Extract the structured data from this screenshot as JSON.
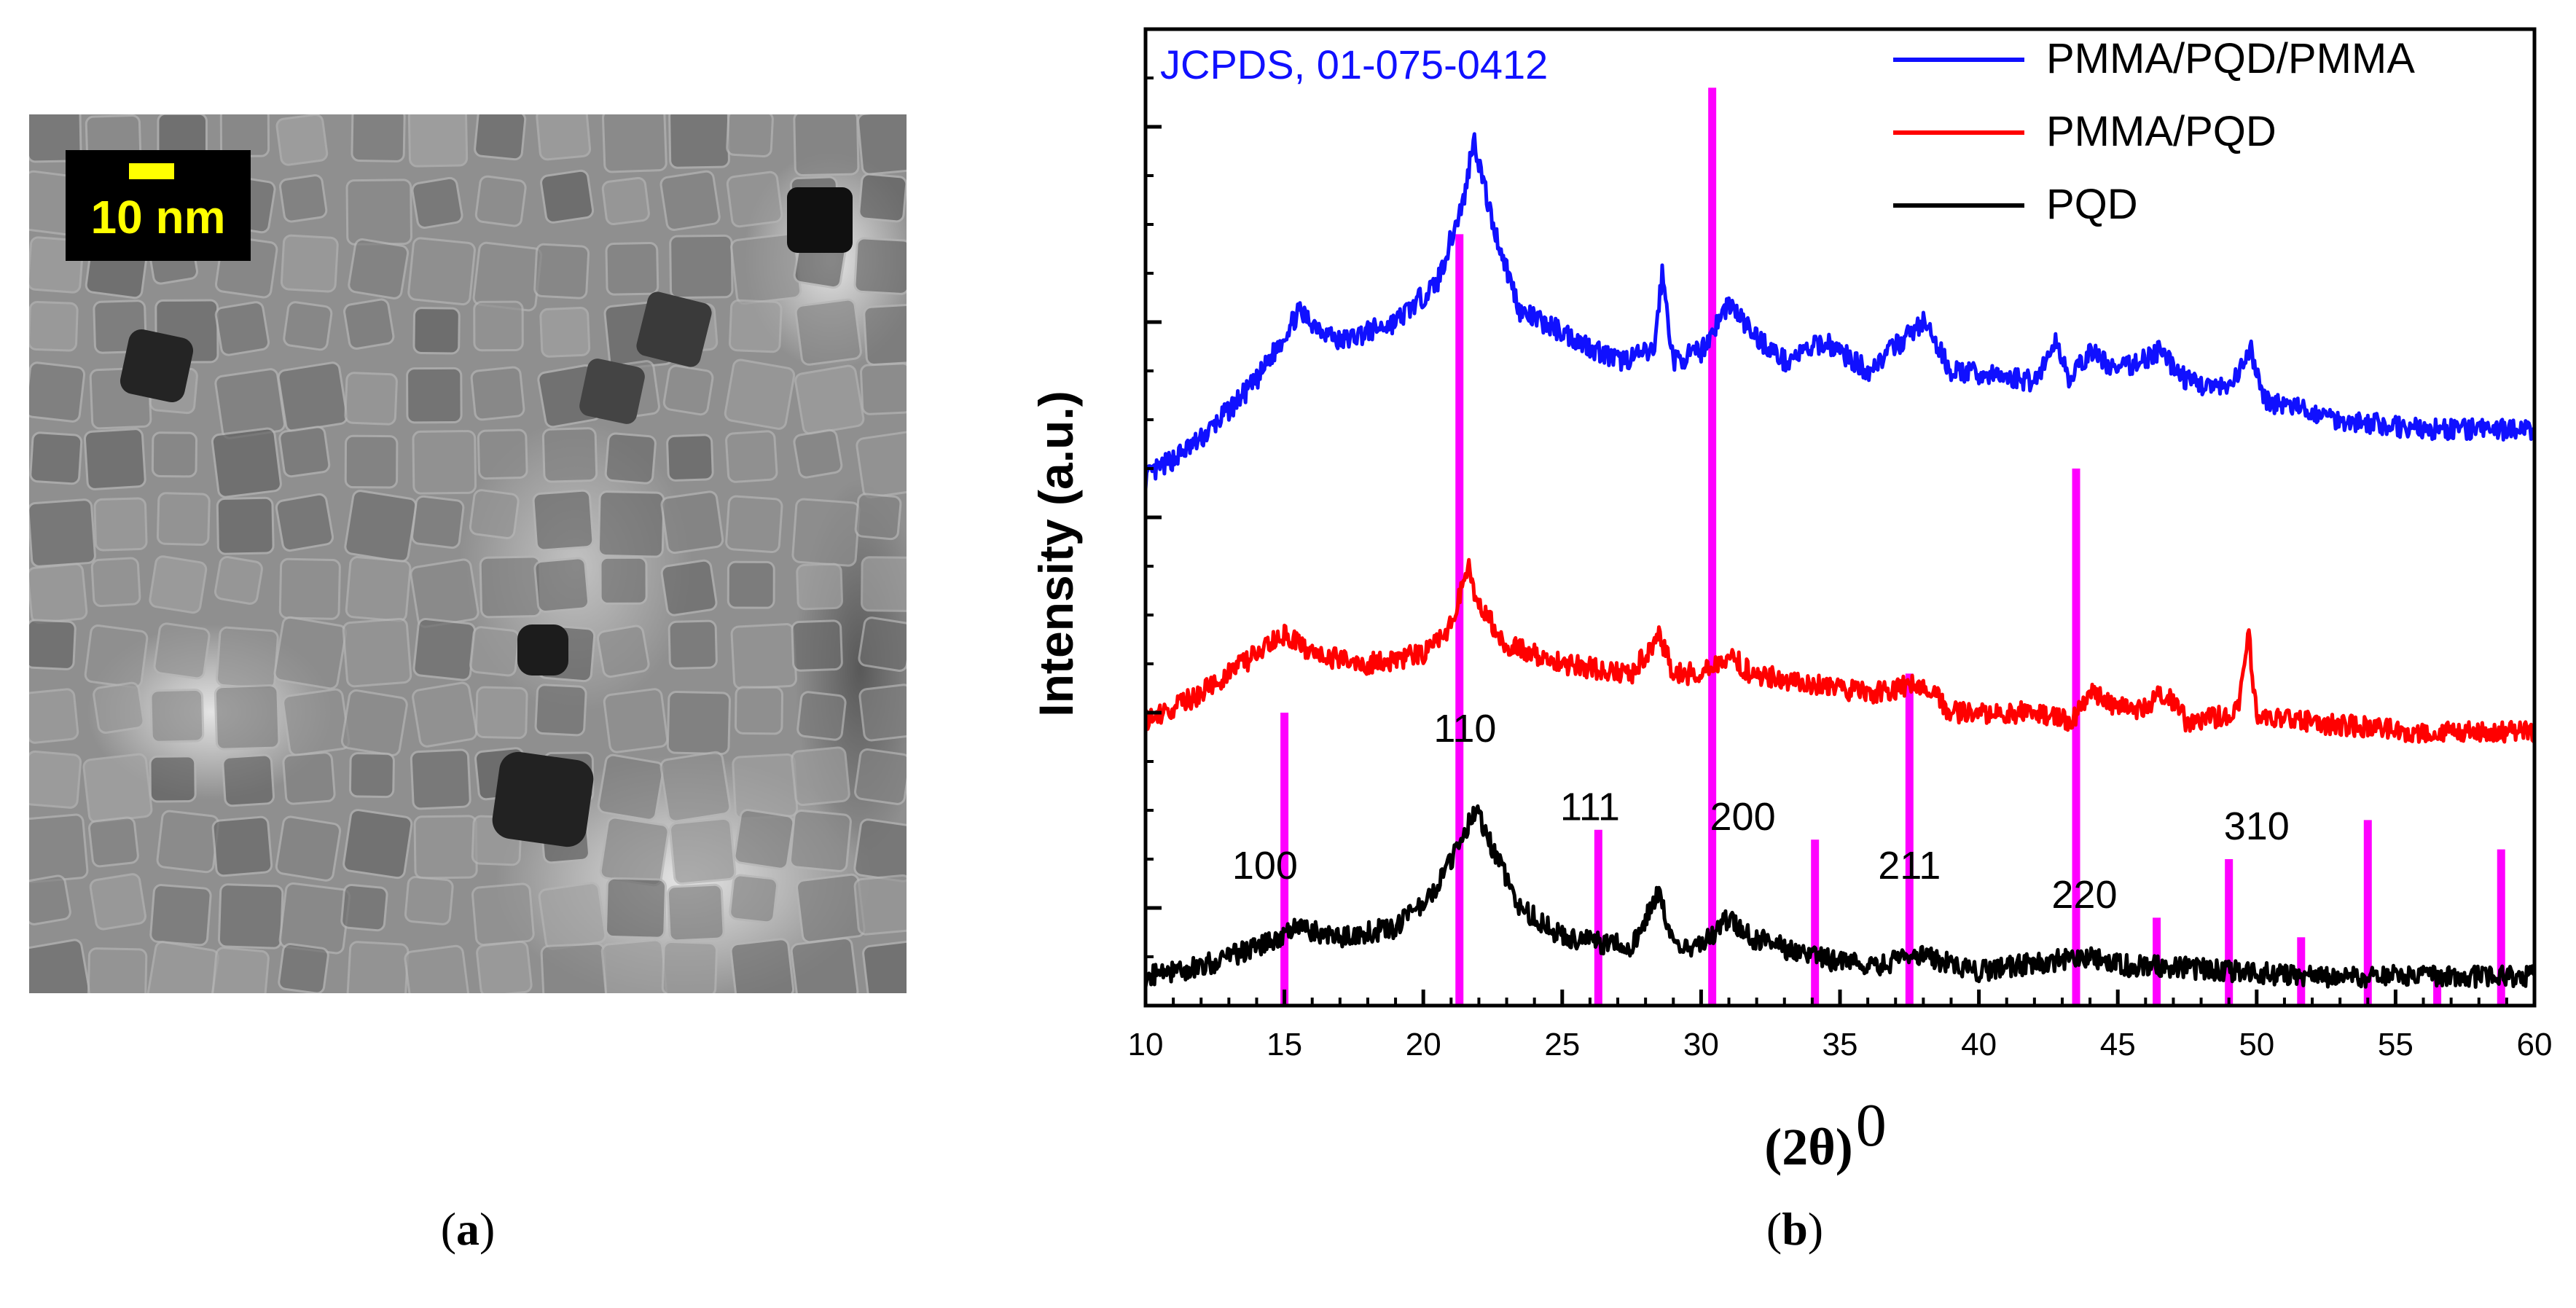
{
  "panel_a": {
    "scale_bar_label": "10 nm",
    "caption_open": "(",
    "caption_letter": "a",
    "caption_close": ")"
  },
  "panel_b": {
    "caption_open": "(",
    "caption_letter": "b",
    "caption_close": ")"
  },
  "colors": {
    "blue": "#1010ff",
    "red": "#ff0000",
    "black": "#000000",
    "magenta": "#ff00ff",
    "scale_yellow": "#ffff00"
  },
  "chart_data": {
    "type": "line",
    "title": "",
    "xlabel_main": "(2θ)",
    "xlabel_sup": "0",
    "ylabel": "Intensity (a.u.)",
    "xlim": [
      10,
      60
    ],
    "ylim": [
      0,
      10
    ],
    "x_ticks": [
      10,
      15,
      20,
      25,
      30,
      35,
      40,
      45,
      50,
      55,
      60
    ],
    "y_tick_labels": "none",
    "legend_position": "top-right",
    "reference_label": "JCPDS, 01-075-0412",
    "series": [
      {
        "name": "PMMA/PQD/PMMA",
        "color": "#1010ff",
        "points": [
          [
            10,
            5.4
          ],
          [
            12,
            5.8
          ],
          [
            14,
            6.4
          ],
          [
            15.5,
            7.1
          ],
          [
            17,
            6.8
          ],
          [
            19,
            7.0
          ],
          [
            20.5,
            7.4
          ],
          [
            21.5,
            8.3
          ],
          [
            21.8,
            8.9
          ],
          [
            22.5,
            8.0
          ],
          [
            23.5,
            7.1
          ],
          [
            25,
            6.9
          ],
          [
            27,
            6.6
          ],
          [
            28.3,
            6.7
          ],
          [
            28.6,
            7.5
          ],
          [
            29,
            6.6
          ],
          [
            30,
            6.7
          ],
          [
            31,
            7.2
          ],
          [
            31.8,
            6.9
          ],
          [
            33,
            6.6
          ],
          [
            34.5,
            6.8
          ],
          [
            36,
            6.5
          ],
          [
            38,
            7.0
          ],
          [
            39,
            6.5
          ],
          [
            42,
            6.4
          ],
          [
            42.8,
            6.8
          ],
          [
            43.3,
            6.4
          ],
          [
            44,
            6.7
          ],
          [
            45,
            6.5
          ],
          [
            46.5,
            6.7
          ],
          [
            47.5,
            6.4
          ],
          [
            49,
            6.3
          ],
          [
            49.8,
            6.7
          ],
          [
            50.3,
            6.2
          ],
          [
            53,
            6.0
          ],
          [
            56,
            5.9
          ],
          [
            60,
            5.9
          ]
        ]
      },
      {
        "name": "PMMA/PQD",
        "color": "#ff0000",
        "points": [
          [
            10,
            2.9
          ],
          [
            12,
            3.2
          ],
          [
            13.5,
            3.5
          ],
          [
            15,
            3.8
          ],
          [
            16,
            3.6
          ],
          [
            18,
            3.5
          ],
          [
            20,
            3.6
          ],
          [
            21,
            3.9
          ],
          [
            21.6,
            4.5
          ],
          [
            22,
            4.1
          ],
          [
            23,
            3.7
          ],
          [
            25,
            3.5
          ],
          [
            27.5,
            3.4
          ],
          [
            28.5,
            3.8
          ],
          [
            29,
            3.4
          ],
          [
            30,
            3.4
          ],
          [
            31,
            3.6
          ],
          [
            31.8,
            3.4
          ],
          [
            34,
            3.3
          ],
          [
            36,
            3.2
          ],
          [
            38,
            3.3
          ],
          [
            39,
            3.0
          ],
          [
            42,
            3.0
          ],
          [
            43.3,
            2.9
          ],
          [
            44,
            3.2
          ],
          [
            45.5,
            3.0
          ],
          [
            46.7,
            3.2
          ],
          [
            47.5,
            2.9
          ],
          [
            49.3,
            3.0
          ],
          [
            49.7,
            3.8
          ],
          [
            50,
            3.0
          ],
          [
            52,
            2.9
          ],
          [
            56,
            2.8
          ],
          [
            60,
            2.8
          ]
        ]
      },
      {
        "name": "PQD",
        "color": "#000000",
        "points": [
          [
            10,
            0.3
          ],
          [
            12,
            0.4
          ],
          [
            14,
            0.6
          ],
          [
            15.5,
            0.8
          ],
          [
            17,
            0.7
          ],
          [
            19,
            0.8
          ],
          [
            20.5,
            1.2
          ],
          [
            21.5,
            1.8
          ],
          [
            21.9,
            2.0
          ],
          [
            22.5,
            1.6
          ],
          [
            23.5,
            1.0
          ],
          [
            25,
            0.7
          ],
          [
            27.5,
            0.6
          ],
          [
            28.5,
            1.2
          ],
          [
            29,
            0.6
          ],
          [
            30,
            0.6
          ],
          [
            31,
            0.9
          ],
          [
            31.8,
            0.7
          ],
          [
            34,
            0.5
          ],
          [
            36,
            0.4
          ],
          [
            38,
            0.5
          ],
          [
            40,
            0.35
          ],
          [
            42.5,
            0.45
          ],
          [
            44,
            0.5
          ],
          [
            45.5,
            0.4
          ],
          [
            47,
            0.4
          ],
          [
            49,
            0.35
          ],
          [
            52,
            0.3
          ],
          [
            56,
            0.3
          ],
          [
            60,
            0.3
          ]
        ]
      }
    ],
    "reference_peaks": [
      {
        "x": 15.0,
        "height": 3.0
      },
      {
        "x": 21.3,
        "height": 7.9
      },
      {
        "x": 26.3,
        "height": 1.8
      },
      {
        "x": 30.4,
        "height": 9.4
      },
      {
        "x": 34.1,
        "height": 1.7
      },
      {
        "x": 37.5,
        "height": 3.4
      },
      {
        "x": 43.5,
        "height": 5.5
      },
      {
        "x": 46.4,
        "height": 0.9
      },
      {
        "x": 49.0,
        "height": 1.5
      },
      {
        "x": 51.6,
        "height": 0.7
      },
      {
        "x": 54.0,
        "height": 1.9
      },
      {
        "x": 56.5,
        "height": 0.3
      },
      {
        "x": 58.8,
        "height": 1.6
      }
    ],
    "peak_labels": [
      {
        "text": "100",
        "x": 14.3,
        "y": 1.3
      },
      {
        "text": "110",
        "x": 21.5,
        "y": 2.7
      },
      {
        "text": "111",
        "x": 26.0,
        "y": 1.9
      },
      {
        "text": "200",
        "x": 31.5,
        "y": 1.8
      },
      {
        "text": "211",
        "x": 37.5,
        "y": 1.3
      },
      {
        "text": "220",
        "x": 43.8,
        "y": 1.0
      },
      {
        "text": "310",
        "x": 50.0,
        "y": 1.7
      }
    ]
  }
}
